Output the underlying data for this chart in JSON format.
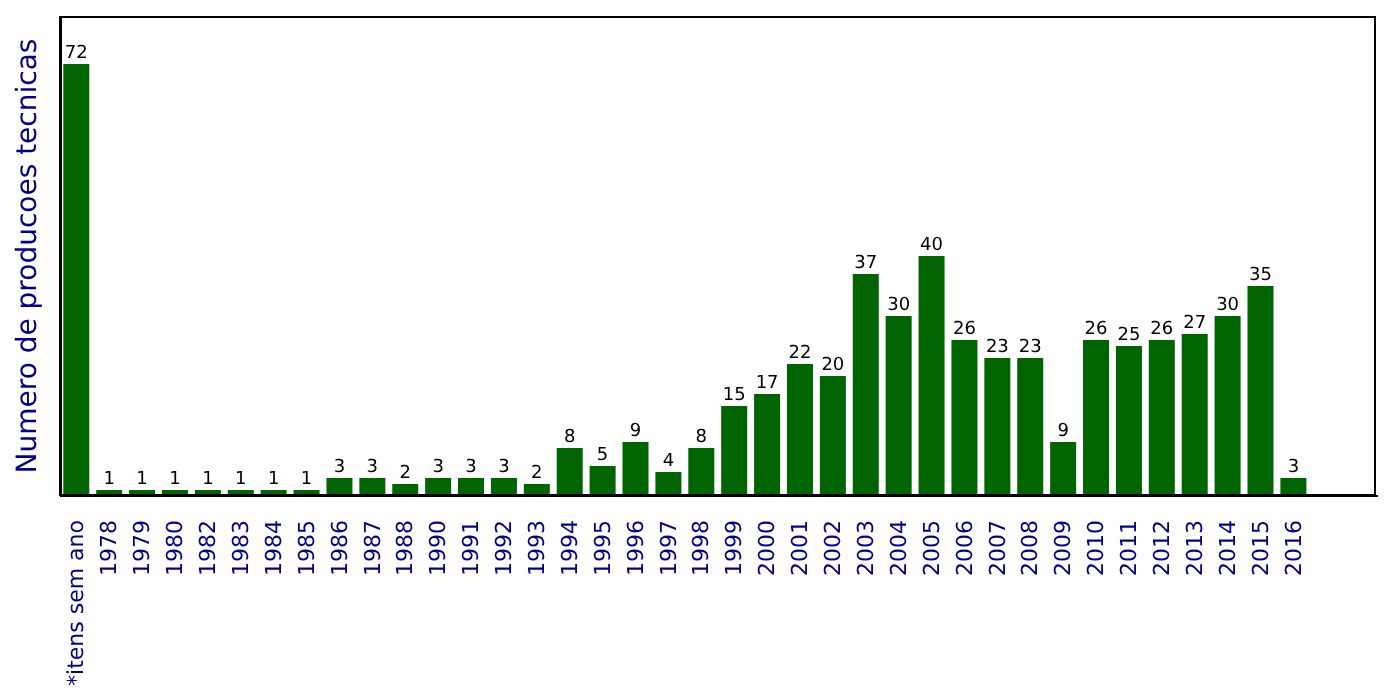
{
  "chart_data": {
    "type": "bar",
    "ylabel": "Numero de producoes tecnicas",
    "categories": [
      "*itens sem ano",
      "1978",
      "1979",
      "1980",
      "1982",
      "1983",
      "1984",
      "1985",
      "1986",
      "1987",
      "1988",
      "1990",
      "1991",
      "1992",
      "1993",
      "1994",
      "1995",
      "1996",
      "1997",
      "1998",
      "1999",
      "2000",
      "2001",
      "2002",
      "2003",
      "2004",
      "2005",
      "2006",
      "2007",
      "2008",
      "2009",
      "2010",
      "2011",
      "2012",
      "2013",
      "2014",
      "2015",
      "2016"
    ],
    "values": [
      72,
      1,
      1,
      1,
      1,
      1,
      1,
      1,
      3,
      3,
      2,
      3,
      3,
      3,
      2,
      8,
      5,
      9,
      4,
      8,
      15,
      17,
      22,
      20,
      37,
      30,
      40,
      26,
      23,
      23,
      9,
      26,
      25,
      26,
      27,
      30,
      35,
      3
    ],
    "color": "#006400",
    "data_labels": true,
    "tick_labels": "x",
    "grid": false
  }
}
